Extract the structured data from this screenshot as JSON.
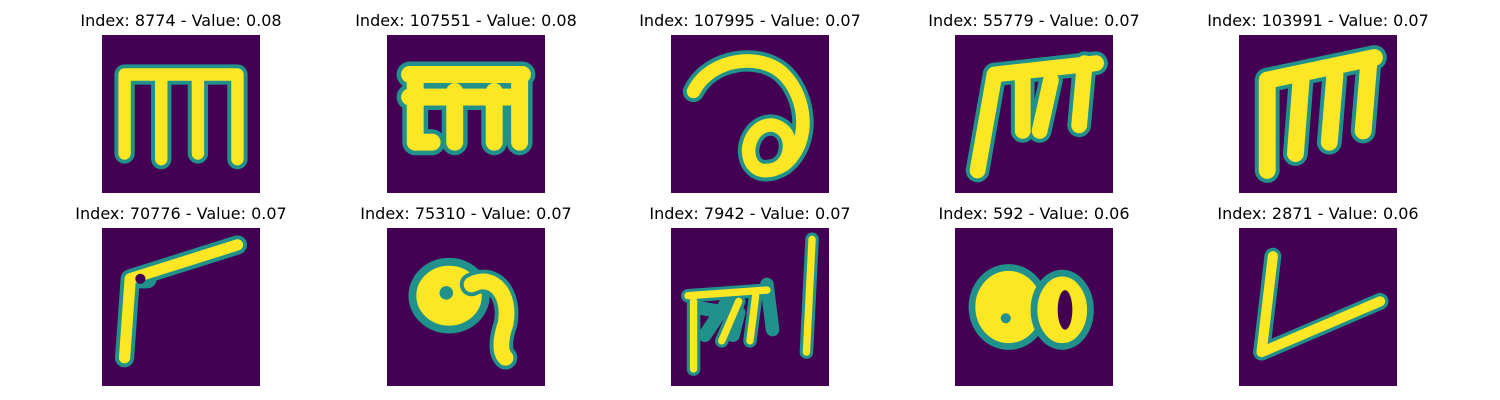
{
  "colors": {
    "background": "#440154",
    "foreground": "#fde725",
    "edge": "#21918c"
  },
  "panels": [
    {
      "title": "Index: 8774 - Value: 0.08",
      "glyph": "m-shaped handwritten stroke"
    },
    {
      "title": "Index: 107551 - Value: 0.08",
      "glyph": "m-shaped handwritten stroke"
    },
    {
      "title": "Index: 107995 - Value: 0.07",
      "glyph": "curled loop stroke"
    },
    {
      "title": "Index: 55779 - Value: 0.07",
      "glyph": "m-shaped slanted stroke"
    },
    {
      "title": "Index: 103991 - Value: 0.07",
      "glyph": "m-shaped slanted stroke"
    },
    {
      "title": "Index: 70776 - Value: 0.07",
      "glyph": "angle stroke"
    },
    {
      "title": "Index: 75310 - Value: 0.07",
      "glyph": "blob with hook stroke"
    },
    {
      "title": "Index: 7942 - Value: 0.07",
      "glyph": "scribbled strokes with vertical bar"
    },
    {
      "title": "Index: 592 - Value: 0.06",
      "glyph": "double blob stroke"
    },
    {
      "title": "Index: 2871 - Value: 0.06",
      "glyph": "v-shaped angle stroke"
    }
  ]
}
